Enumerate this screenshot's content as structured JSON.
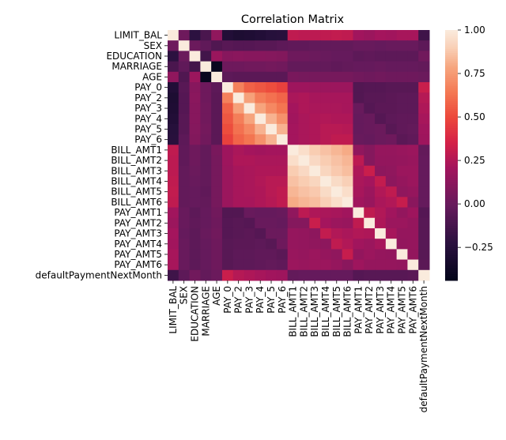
{
  "chart_data": {
    "type": "heatmap",
    "title": "Correlation Matrix",
    "xlabel": "",
    "ylabel": "",
    "labels": [
      "LIMIT_BAL",
      "SEX",
      "EDUCATION",
      "MARRIAGE",
      "AGE",
      "PAY_0",
      "PAY_2",
      "PAY_3",
      "PAY_4",
      "PAY_5",
      "PAY_6",
      "BILL_AMT1",
      "BILL_AMT2",
      "BILL_AMT3",
      "BILL_AMT4",
      "BILL_AMT5",
      "BILL_AMT6",
      "PAY_AMT1",
      "PAY_AMT2",
      "PAY_AMT3",
      "PAY_AMT4",
      "PAY_AMT5",
      "PAY_AMT6",
      "defaultPaymentNextMonth"
    ],
    "matrix": [
      [
        1.0,
        0.02,
        -0.22,
        -0.11,
        0.14,
        -0.27,
        -0.3,
        -0.29,
        -0.27,
        -0.25,
        -0.24,
        0.29,
        0.28,
        0.28,
        0.29,
        0.3,
        0.29,
        0.2,
        0.18,
        0.21,
        0.2,
        0.22,
        0.22,
        -0.15
      ],
      [
        0.02,
        1.0,
        0.01,
        -0.03,
        -0.09,
        -0.06,
        -0.07,
        -0.07,
        -0.06,
        -0.06,
        -0.04,
        -0.03,
        -0.03,
        -0.02,
        -0.02,
        -0.02,
        -0.02,
        0.0,
        0.0,
        -0.01,
        0.0,
        0.0,
        0.0,
        -0.04
      ],
      [
        -0.22,
        0.01,
        1.0,
        -0.14,
        0.18,
        0.11,
        0.12,
        0.11,
        0.11,
        0.1,
        0.09,
        0.02,
        0.02,
        0.01,
        0.0,
        -0.01,
        -0.01,
        -0.04,
        -0.03,
        -0.04,
        -0.04,
        -0.04,
        -0.04,
        0.03
      ],
      [
        -0.11,
        -0.03,
        -0.14,
        1.0,
        -0.41,
        0.02,
        0.02,
        0.03,
        0.03,
        0.04,
        0.03,
        -0.02,
        -0.02,
        -0.02,
        -0.02,
        -0.03,
        -0.02,
        -0.01,
        -0.01,
        0.0,
        -0.01,
        -0.01,
        -0.01,
        -0.02
      ],
      [
        0.14,
        -0.09,
        0.18,
        -0.41,
        1.0,
        -0.04,
        -0.05,
        -0.05,
        -0.05,
        -0.05,
        -0.05,
        0.06,
        0.05,
        0.05,
        0.05,
        0.05,
        0.05,
        0.03,
        0.02,
        0.03,
        0.02,
        0.02,
        0.02,
        0.01
      ],
      [
        -0.27,
        -0.06,
        0.11,
        0.02,
        -0.04,
        1.0,
        0.67,
        0.57,
        0.54,
        0.51,
        0.47,
        0.19,
        0.19,
        0.18,
        0.18,
        0.18,
        0.18,
        -0.08,
        -0.07,
        -0.07,
        -0.06,
        -0.06,
        -0.06,
        0.32
      ],
      [
        -0.3,
        -0.07,
        0.12,
        0.02,
        -0.05,
        0.67,
        1.0,
        0.77,
        0.66,
        0.62,
        0.58,
        0.23,
        0.24,
        0.22,
        0.22,
        0.22,
        0.22,
        -0.08,
        -0.06,
        -0.06,
        -0.05,
        -0.04,
        -0.04,
        0.26
      ],
      [
        -0.29,
        -0.07,
        0.11,
        0.03,
        -0.05,
        0.57,
        0.77,
        1.0,
        0.78,
        0.69,
        0.63,
        0.21,
        0.24,
        0.23,
        0.23,
        0.23,
        0.22,
        0.0,
        -0.07,
        -0.05,
        -0.05,
        -0.04,
        -0.04,
        0.24
      ],
      [
        -0.27,
        -0.06,
        0.11,
        0.03,
        -0.05,
        0.54,
        0.66,
        0.78,
        1.0,
        0.82,
        0.72,
        0.2,
        0.23,
        0.24,
        0.25,
        0.24,
        0.24,
        -0.01,
        0.0,
        -0.07,
        -0.04,
        -0.03,
        -0.03,
        0.22
      ],
      [
        -0.25,
        -0.06,
        0.1,
        0.04,
        -0.05,
        0.51,
        0.62,
        0.69,
        0.82,
        1.0,
        0.82,
        0.21,
        0.23,
        0.24,
        0.27,
        0.27,
        0.26,
        -0.01,
        -0.0,
        0.01,
        -0.06,
        -0.03,
        -0.02,
        0.2
      ],
      [
        -0.24,
        -0.04,
        0.09,
        0.03,
        -0.05,
        0.47,
        0.58,
        0.63,
        0.72,
        0.82,
        1.0,
        0.21,
        0.23,
        0.24,
        0.27,
        0.29,
        0.29,
        -0.0,
        -0.01,
        0.01,
        0.02,
        -0.05,
        -0.03,
        0.19
      ],
      [
        0.29,
        -0.03,
        0.02,
        -0.02,
        0.06,
        0.19,
        0.23,
        0.21,
        0.2,
        0.21,
        0.21,
        1.0,
        0.95,
        0.89,
        0.86,
        0.83,
        0.8,
        0.14,
        0.1,
        0.16,
        0.16,
        0.17,
        0.18,
        -0.02
      ],
      [
        0.28,
        -0.03,
        0.02,
        -0.02,
        0.05,
        0.19,
        0.24,
        0.24,
        0.23,
        0.23,
        0.23,
        0.95,
        1.0,
        0.93,
        0.89,
        0.86,
        0.83,
        0.28,
        0.1,
        0.15,
        0.15,
        0.16,
        0.17,
        -0.01
      ],
      [
        0.28,
        -0.02,
        0.01,
        -0.02,
        0.05,
        0.18,
        0.22,
        0.23,
        0.24,
        0.24,
        0.24,
        0.89,
        0.93,
        1.0,
        0.92,
        0.88,
        0.85,
        0.24,
        0.32,
        0.13,
        0.14,
        0.18,
        0.18,
        -0.01
      ],
      [
        0.29,
        -0.02,
        0.0,
        -0.02,
        0.05,
        0.18,
        0.22,
        0.23,
        0.25,
        0.27,
        0.27,
        0.86,
        0.89,
        0.92,
        1.0,
        0.94,
        0.9,
        0.23,
        0.21,
        0.3,
        0.13,
        0.16,
        0.18,
        -0.01
      ],
      [
        0.3,
        -0.02,
        -0.01,
        -0.03,
        0.05,
        0.18,
        0.22,
        0.23,
        0.24,
        0.27,
        0.29,
        0.83,
        0.86,
        0.88,
        0.94,
        1.0,
        0.95,
        0.22,
        0.18,
        0.25,
        0.29,
        0.14,
        0.16,
        -0.01
      ],
      [
        0.29,
        -0.02,
        -0.01,
        -0.02,
        0.05,
        0.18,
        0.22,
        0.22,
        0.24,
        0.26,
        0.29,
        0.8,
        0.83,
        0.85,
        0.9,
        0.95,
        1.0,
        0.2,
        0.17,
        0.23,
        0.25,
        0.31,
        0.12,
        -0.01
      ],
      [
        0.2,
        0.0,
        -0.04,
        -0.01,
        0.03,
        -0.08,
        -0.08,
        0.0,
        -0.01,
        -0.01,
        -0.0,
        0.14,
        0.28,
        0.24,
        0.23,
        0.22,
        0.2,
        1.0,
        0.29,
        0.25,
        0.2,
        0.15,
        0.19,
        -0.07
      ],
      [
        0.18,
        0.0,
        -0.03,
        -0.01,
        0.02,
        -0.07,
        -0.06,
        -0.07,
        0.0,
        -0.0,
        -0.01,
        0.1,
        0.1,
        0.32,
        0.21,
        0.18,
        0.17,
        0.29,
        1.0,
        0.24,
        0.18,
        0.18,
        0.16,
        -0.06
      ],
      [
        0.21,
        -0.01,
        -0.04,
        0.0,
        0.03,
        -0.07,
        -0.06,
        -0.05,
        -0.07,
        0.01,
        0.01,
        0.16,
        0.15,
        0.13,
        0.3,
        0.25,
        0.23,
        0.25,
        0.24,
        1.0,
        0.22,
        0.16,
        0.16,
        -0.06
      ],
      [
        0.2,
        0.0,
        -0.04,
        -0.01,
        0.02,
        -0.06,
        -0.05,
        -0.05,
        -0.04,
        -0.06,
        0.02,
        0.16,
        0.15,
        0.14,
        0.13,
        0.29,
        0.25,
        0.2,
        0.18,
        0.22,
        1.0,
        0.15,
        0.16,
        -0.06
      ],
      [
        0.22,
        0.0,
        -0.04,
        -0.01,
        0.02,
        -0.06,
        -0.04,
        -0.04,
        -0.03,
        -0.03,
        -0.05,
        0.17,
        0.16,
        0.18,
        0.16,
        0.14,
        0.31,
        0.15,
        0.18,
        0.16,
        0.15,
        1.0,
        0.15,
        -0.06
      ],
      [
        0.22,
        0.0,
        -0.04,
        -0.01,
        0.02,
        -0.06,
        -0.04,
        -0.04,
        -0.03,
        -0.02,
        -0.03,
        0.18,
        0.17,
        0.18,
        0.18,
        0.16,
        0.12,
        0.19,
        0.16,
        0.16,
        0.16,
        0.15,
        1.0,
        -0.05
      ],
      [
        -0.15,
        -0.04,
        0.03,
        -0.02,
        0.01,
        0.32,
        0.26,
        0.24,
        0.22,
        0.2,
        0.19,
        -0.02,
        -0.01,
        -0.01,
        -0.01,
        -0.01,
        -0.01,
        -0.07,
        -0.06,
        -0.06,
        -0.06,
        -0.06,
        -0.05,
        1.0
      ]
    ],
    "vmin": -0.44,
    "vmax": 1.0,
    "colormap": "rocket",
    "colorbar_ticks": [
      -0.25,
      0.0,
      0.25,
      0.5,
      0.75,
      1.0
    ],
    "colorbar_tick_labels": [
      "−0.25",
      "0.00",
      "0.25",
      "0.50",
      "0.75",
      "1.00"
    ]
  }
}
